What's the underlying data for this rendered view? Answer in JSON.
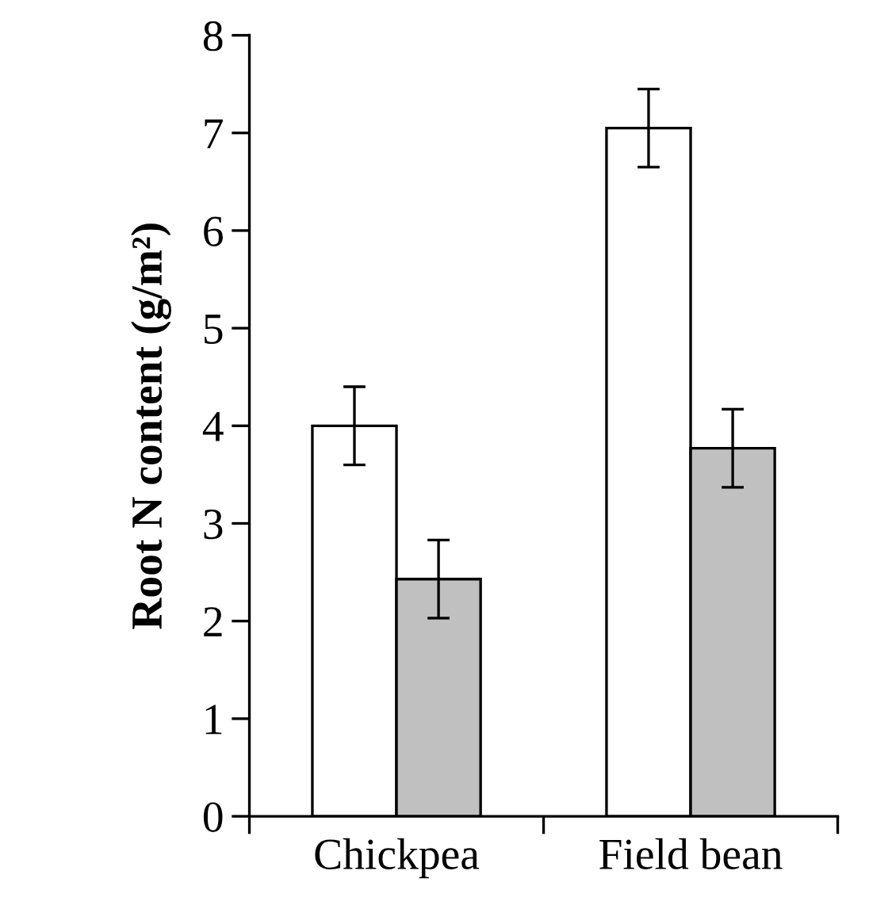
{
  "chart_data": {
    "type": "bar",
    "ylabel": "Root N content (g/m²)",
    "categories": [
      "Chickpea",
      "Field bean"
    ],
    "series": [
      {
        "color": "#ffffff",
        "values": [
          4.0,
          7.05
        ],
        "errors": [
          0.4,
          0.4
        ]
      },
      {
        "color": "#c0c0c0",
        "values": [
          2.43,
          3.77
        ],
        "errors": [
          0.4,
          0.4
        ]
      }
    ],
    "ylim": [
      0,
      8
    ],
    "yticks": [
      0,
      1,
      2,
      3,
      4,
      5,
      6,
      7,
      8
    ],
    "grid": false,
    "legend": false
  }
}
